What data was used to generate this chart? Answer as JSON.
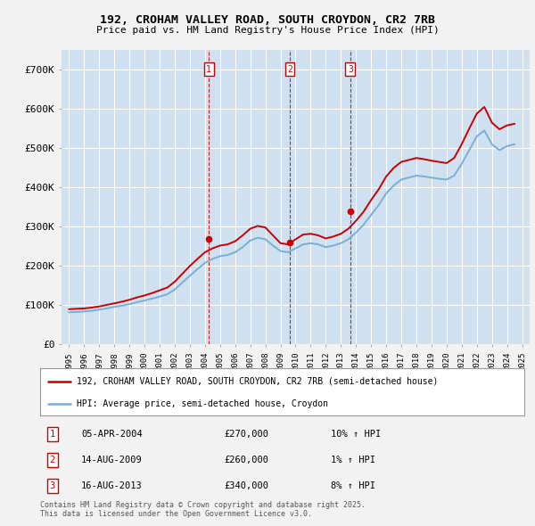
{
  "title": "192, CROHAM VALLEY ROAD, SOUTH CROYDON, CR2 7RB",
  "subtitle": "Price paid vs. HM Land Registry's House Price Index (HPI)",
  "ylim": [
    0,
    750000
  ],
  "yticks": [
    0,
    100000,
    200000,
    300000,
    400000,
    500000,
    600000,
    700000
  ],
  "ytick_labels": [
    "£0",
    "£100K",
    "£200K",
    "£300K",
    "£400K",
    "£500K",
    "£600K",
    "£700K"
  ],
  "bg_color": "#cfe0f0",
  "outer_bg": "#f2f2f2",
  "grid_color": "#ffffff",
  "red_color": "#cc0000",
  "blue_color": "#7aafd4",
  "transactions": [
    {
      "num": 1,
      "date": "05-APR-2004",
      "price": 270000,
      "hpi_rel": "10% ↑ HPI",
      "year": 2004.26
    },
    {
      "num": 2,
      "date": "14-AUG-2009",
      "price": 260000,
      "hpi_rel": "1% ↑ HPI",
      "year": 2009.62
    },
    {
      "num": 3,
      "date": "16-AUG-2013",
      "price": 340000,
      "hpi_rel": "8% ↑ HPI",
      "year": 2013.62
    }
  ],
  "legend_label_red": "192, CROHAM VALLEY ROAD, SOUTH CROYDON, CR2 7RB (semi-detached house)",
  "legend_label_blue": "HPI: Average price, semi-detached house, Croydon",
  "footer": "Contains HM Land Registry data © Crown copyright and database right 2025.\nThis data is licensed under the Open Government Licence v3.0.",
  "hpi_data": {
    "years": [
      1995.0,
      1995.5,
      1996.0,
      1996.5,
      1997.0,
      1997.5,
      1998.0,
      1998.5,
      1999.0,
      1999.5,
      2000.0,
      2000.5,
      2001.0,
      2001.5,
      2002.0,
      2002.5,
      2003.0,
      2003.5,
      2004.0,
      2004.5,
      2005.0,
      2005.5,
      2006.0,
      2006.5,
      2007.0,
      2007.5,
      2008.0,
      2008.5,
      2009.0,
      2009.5,
      2010.0,
      2010.5,
      2011.0,
      2011.5,
      2012.0,
      2012.5,
      2013.0,
      2013.5,
      2014.0,
      2014.5,
      2015.0,
      2015.5,
      2016.0,
      2016.5,
      2017.0,
      2017.5,
      2018.0,
      2018.5,
      2019.0,
      2019.5,
      2020.0,
      2020.5,
      2021.0,
      2021.5,
      2022.0,
      2022.5,
      2023.0,
      2023.5,
      2024.0,
      2024.5
    ],
    "hpi_values": [
      82000,
      83000,
      84000,
      86000,
      89000,
      92000,
      96000,
      99000,
      103000,
      108000,
      112000,
      117000,
      122000,
      128000,
      140000,
      158000,
      175000,
      192000,
      208000,
      218000,
      225000,
      228000,
      235000,
      248000,
      265000,
      272000,
      268000,
      252000,
      238000,
      235000,
      245000,
      255000,
      258000,
      255000,
      248000,
      252000,
      258000,
      268000,
      285000,
      305000,
      330000,
      355000,
      385000,
      405000,
      420000,
      425000,
      430000,
      428000,
      425000,
      422000,
      420000,
      430000,
      460000,
      495000,
      530000,
      545000,
      510000,
      495000,
      505000,
      510000
    ],
    "red_values": [
      90000,
      91000,
      92000,
      94000,
      97000,
      101000,
      105000,
      109000,
      114000,
      120000,
      125000,
      131000,
      138000,
      145000,
      160000,
      180000,
      200000,
      218000,
      235000,
      245000,
      252000,
      255000,
      263000,
      278000,
      295000,
      302000,
      298000,
      278000,
      258000,
      255000,
      268000,
      280000,
      282000,
      278000,
      270000,
      275000,
      282000,
      295000,
      315000,
      338000,
      368000,
      395000,
      428000,
      450000,
      465000,
      470000,
      475000,
      472000,
      468000,
      465000,
      462000,
      475000,
      510000,
      550000,
      588000,
      605000,
      565000,
      548000,
      558000,
      562000
    ]
  }
}
